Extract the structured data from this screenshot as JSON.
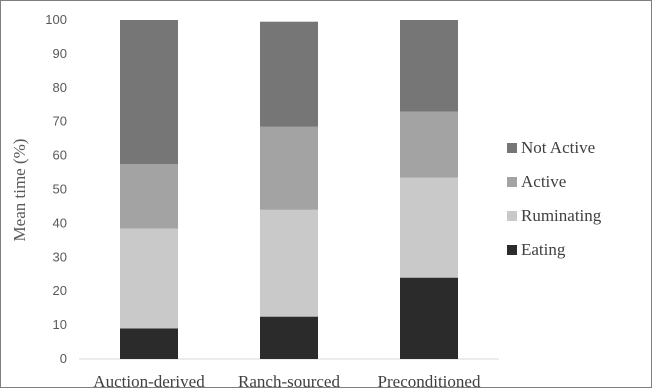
{
  "chart_data": {
    "type": "bar",
    "stacked": true,
    "categories": [
      "Auction-derived",
      "Ranch-sourced",
      "Preconditioned"
    ],
    "series": [
      {
        "name": "Eating",
        "values": [
          9,
          12.5,
          24
        ],
        "color": "#2b2b2b"
      },
      {
        "name": "Ruminating",
        "values": [
          29.5,
          31.5,
          29.5
        ],
        "color": "#c9c9c9"
      },
      {
        "name": "Active",
        "values": [
          19,
          24.5,
          19.5
        ],
        "color": "#a3a3a3"
      },
      {
        "name": "Not Active",
        "values": [
          42.5,
          31,
          27
        ],
        "color": "#767676"
      }
    ],
    "legend_order": [
      "Not Active",
      "Active",
      "Ruminating",
      "Eating"
    ],
    "legend_position": "right",
    "title": "",
    "xlabel": "",
    "ylabel": "Mean time (%)",
    "ylim": [
      0,
      100
    ],
    "yticks": [
      0,
      10,
      20,
      30,
      40,
      50,
      60,
      70,
      80,
      90,
      100
    ],
    "grid": false
  }
}
